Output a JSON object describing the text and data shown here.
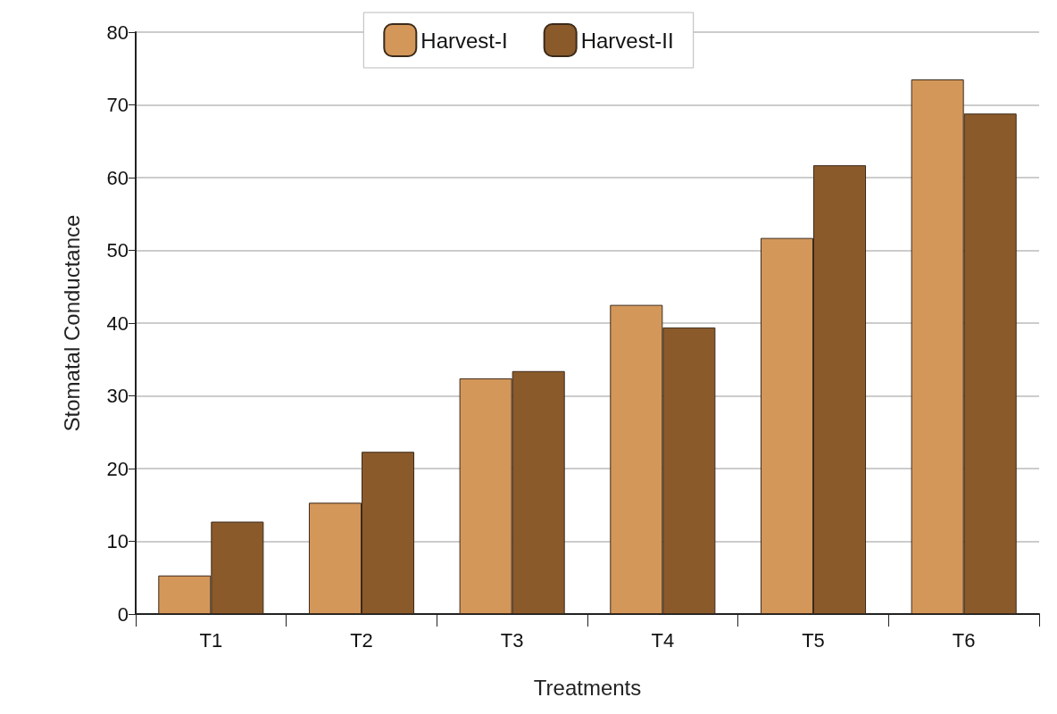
{
  "chart_data": {
    "type": "bar",
    "xlabel": "Treatments",
    "ylabel": "Stomatal Conductance",
    "categories": [
      "T1",
      "T2",
      "T3",
      "T4",
      "T5",
      "T6"
    ],
    "series": [
      {
        "name": "Harvest-I",
        "color": "#d4975a",
        "values": [
          5.3,
          15.3,
          32.4,
          42.5,
          51.7,
          73.5
        ]
      },
      {
        "name": "Harvest-II",
        "color": "#8b5a2b",
        "values": [
          12.7,
          22.3,
          33.4,
          39.4,
          61.7,
          68.8
        ]
      }
    ],
    "ylim": [
      0,
      80
    ],
    "yticks": [
      0,
      10,
      20,
      30,
      40,
      50,
      60,
      70,
      80
    ],
    "grid": "y",
    "legend": "top"
  }
}
